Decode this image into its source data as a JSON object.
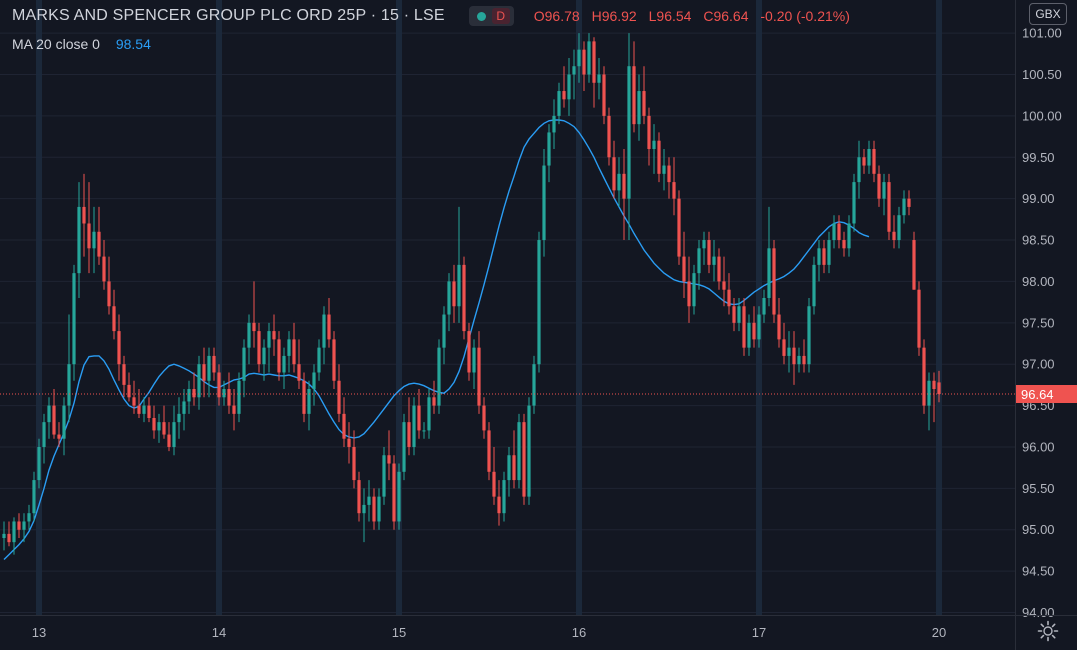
{
  "header": {
    "symbol": "MARKS AND SPENCER GROUP PLC ORD 25P · 15 · LSE",
    "status_badge": "D",
    "ohlc": {
      "open": "O96.78",
      "high": "H96.92",
      "low": "L96.54",
      "close": "C96.64",
      "change": "-0.20 (-0.21%)"
    }
  },
  "indicator": {
    "label": "MA 20 close 0",
    "value": "98.54"
  },
  "currency_button": "GBX",
  "icons": {
    "settings": "gear-icon",
    "status": "status-dot-icon"
  },
  "colors": {
    "background": "#131722",
    "up": "#26a69a",
    "down": "#ef5350",
    "ma": "#2a9df4",
    "grid": "#1f2433",
    "axis_text": "#b2b5be"
  },
  "chart_data": {
    "type": "candlestick",
    "interval": "15",
    "x_ticks": [
      "13",
      "14",
      "15",
      "16",
      "17",
      "20"
    ],
    "y_ticks": [
      "94.00",
      "94.50",
      "95.00",
      "95.50",
      "96.00",
      "96.50",
      "97.00",
      "97.50",
      "98.00",
      "98.50",
      "99.00",
      "99.50",
      "100.00",
      "100.50",
      "101.00"
    ],
    "ylim": [
      93.97,
      101.4
    ],
    "last_price": "96.64",
    "grid": true,
    "candles": [
      [
        94.9,
        95.1,
        94.75,
        94.95
      ],
      [
        94.95,
        95.1,
        94.8,
        94.85
      ],
      [
        94.85,
        95.15,
        94.7,
        95.1
      ],
      [
        95.1,
        95.2,
        94.9,
        95.0
      ],
      [
        95.0,
        95.2,
        94.85,
        95.1
      ],
      [
        95.1,
        95.3,
        95.0,
        95.2
      ],
      [
        95.2,
        95.7,
        95.1,
        95.6
      ],
      [
        95.6,
        96.1,
        95.5,
        96.0
      ],
      [
        96.0,
        96.4,
        95.8,
        96.3
      ],
      [
        96.3,
        96.6,
        96.1,
        96.5
      ],
      [
        96.5,
        96.7,
        96.1,
        96.15
      ],
      [
        96.15,
        96.3,
        96.0,
        96.1
      ],
      [
        96.1,
        96.6,
        95.9,
        96.5
      ],
      [
        96.5,
        97.6,
        96.3,
        97.0
      ],
      [
        97.0,
        98.2,
        96.8,
        98.1
      ],
      [
        98.1,
        99.2,
        97.8,
        98.9
      ],
      [
        98.9,
        99.3,
        98.3,
        98.7
      ],
      [
        98.7,
        99.2,
        98.1,
        98.4
      ],
      [
        98.4,
        98.9,
        98.1,
        98.6
      ],
      [
        98.6,
        98.9,
        98.2,
        98.3
      ],
      [
        98.3,
        98.5,
        97.9,
        98.0
      ],
      [
        98.0,
        98.3,
        97.6,
        97.7
      ],
      [
        97.7,
        97.9,
        97.3,
        97.4
      ],
      [
        97.4,
        97.6,
        96.8,
        97.0
      ],
      [
        97.0,
        97.1,
        96.6,
        96.75
      ],
      [
        96.75,
        96.9,
        96.55,
        96.6
      ],
      [
        96.6,
        96.8,
        96.4,
        96.5
      ],
      [
        96.5,
        96.7,
        96.35,
        96.4
      ],
      [
        96.4,
        96.6,
        96.3,
        96.5
      ],
      [
        96.5,
        96.6,
        96.3,
        96.35
      ],
      [
        96.35,
        96.5,
        96.1,
        96.2
      ],
      [
        96.2,
        96.4,
        96.05,
        96.3
      ],
      [
        96.3,
        96.5,
        96.1,
        96.15
      ],
      [
        96.15,
        96.3,
        95.95,
        96.0
      ],
      [
        96.0,
        96.5,
        95.9,
        96.3
      ],
      [
        96.3,
        96.6,
        96.1,
        96.4
      ],
      [
        96.4,
        96.7,
        96.2,
        96.55
      ],
      [
        96.55,
        96.8,
        96.4,
        96.7
      ],
      [
        96.7,
        96.9,
        96.5,
        96.6
      ],
      [
        96.6,
        97.1,
        96.45,
        97.0
      ],
      [
        97.0,
        97.2,
        96.6,
        96.8
      ],
      [
        96.8,
        97.2,
        96.6,
        97.1
      ],
      [
        97.1,
        97.2,
        96.8,
        96.9
      ],
      [
        96.9,
        97.0,
        96.5,
        96.6
      ],
      [
        96.6,
        96.8,
        96.5,
        96.7
      ],
      [
        96.7,
        96.9,
        96.4,
        96.5
      ],
      [
        96.5,
        96.7,
        96.2,
        96.4
      ],
      [
        96.4,
        96.9,
        96.3,
        96.8
      ],
      [
        96.8,
        97.3,
        96.6,
        97.2
      ],
      [
        97.2,
        97.6,
        97.0,
        97.5
      ],
      [
        97.5,
        98.0,
        97.2,
        97.4
      ],
      [
        97.4,
        97.5,
        96.9,
        97.0
      ],
      [
        97.0,
        97.3,
        96.8,
        97.2
      ],
      [
        97.2,
        97.5,
        96.9,
        97.4
      ],
      [
        97.4,
        97.6,
        97.1,
        97.3
      ],
      [
        97.3,
        97.4,
        96.8,
        96.9
      ],
      [
        96.9,
        97.2,
        96.7,
        97.1
      ],
      [
        97.1,
        97.4,
        96.9,
        97.3
      ],
      [
        97.3,
        97.5,
        96.9,
        97.0
      ],
      [
        97.0,
        97.3,
        96.7,
        96.8
      ],
      [
        96.8,
        96.9,
        96.3,
        96.4
      ],
      [
        96.4,
        96.8,
        96.2,
        96.7
      ],
      [
        96.7,
        97.0,
        96.5,
        96.9
      ],
      [
        96.9,
        97.3,
        96.8,
        97.2
      ],
      [
        97.2,
        97.7,
        97.0,
        97.6
      ],
      [
        97.6,
        97.8,
        97.2,
        97.3
      ],
      [
        97.3,
        97.4,
        96.7,
        96.8
      ],
      [
        96.8,
        97.0,
        96.3,
        96.4
      ],
      [
        96.4,
        96.6,
        96.0,
        96.1
      ],
      [
        96.1,
        96.3,
        95.8,
        96.0
      ],
      [
        96.0,
        96.2,
        95.5,
        95.6
      ],
      [
        95.6,
        95.7,
        95.1,
        95.2
      ],
      [
        95.2,
        95.5,
        94.85,
        95.3
      ],
      [
        95.3,
        95.6,
        95.1,
        95.4
      ],
      [
        95.4,
        95.5,
        95.0,
        95.1
      ],
      [
        95.1,
        95.5,
        95.0,
        95.4
      ],
      [
        95.4,
        96.0,
        95.3,
        95.9
      ],
      [
        95.9,
        96.2,
        95.6,
        95.8
      ],
      [
        95.8,
        95.9,
        95.0,
        95.1
      ],
      [
        95.1,
        95.8,
        95.0,
        95.7
      ],
      [
        95.7,
        96.4,
        95.6,
        96.3
      ],
      [
        96.3,
        96.6,
        95.9,
        96.0
      ],
      [
        96.0,
        96.6,
        95.9,
        96.5
      ],
      [
        96.5,
        96.7,
        96.1,
        96.2
      ],
      [
        96.2,
        96.3,
        96.1,
        96.2
      ],
      [
        96.2,
        96.7,
        96.1,
        96.6
      ],
      [
        96.6,
        96.8,
        96.4,
        96.5
      ],
      [
        96.5,
        97.3,
        96.4,
        97.2
      ],
      [
        97.2,
        97.7,
        97.0,
        97.6
      ],
      [
        97.6,
        98.1,
        97.4,
        98.0
      ],
      [
        98.0,
        98.2,
        97.5,
        97.7
      ],
      [
        97.7,
        98.9,
        97.5,
        98.2
      ],
      [
        98.2,
        98.3,
        97.3,
        97.4
      ],
      [
        97.4,
        97.5,
        96.8,
        96.9
      ],
      [
        96.9,
        97.3,
        96.7,
        97.2
      ],
      [
        97.2,
        97.4,
        96.4,
        96.5
      ],
      [
        96.5,
        96.6,
        96.1,
        96.2
      ],
      [
        96.2,
        96.3,
        95.6,
        95.7
      ],
      [
        95.7,
        96.0,
        95.3,
        95.4
      ],
      [
        95.4,
        95.6,
        95.05,
        95.2
      ],
      [
        95.2,
        95.7,
        95.1,
        95.6
      ],
      [
        95.6,
        96.0,
        95.4,
        95.9
      ],
      [
        95.9,
        96.2,
        95.5,
        95.6
      ],
      [
        95.6,
        96.4,
        95.5,
        96.3
      ],
      [
        96.3,
        96.4,
        95.3,
        95.4
      ],
      [
        95.4,
        96.6,
        95.3,
        96.5
      ],
      [
        96.5,
        97.1,
        96.4,
        97.0
      ],
      [
        97.0,
        98.6,
        96.9,
        98.5
      ],
      [
        98.5,
        99.6,
        98.3,
        99.4
      ],
      [
        99.4,
        99.9,
        99.2,
        99.8
      ],
      [
        99.8,
        100.2,
        99.6,
        100.0
      ],
      [
        100.0,
        100.4,
        99.9,
        100.3
      ],
      [
        100.3,
        100.6,
        100.1,
        100.2
      ],
      [
        100.2,
        100.7,
        100.0,
        100.5
      ],
      [
        100.5,
        100.8,
        100.2,
        100.6
      ],
      [
        100.6,
        101.0,
        100.4,
        100.8
      ],
      [
        100.8,
        100.9,
        100.3,
        100.5
      ],
      [
        100.5,
        101.0,
        100.4,
        100.9
      ],
      [
        100.9,
        100.95,
        100.1,
        100.4
      ],
      [
        100.4,
        100.7,
        100.2,
        100.5
      ],
      [
        100.5,
        100.6,
        99.9,
        100.0
      ],
      [
        100.0,
        100.1,
        99.4,
        99.5
      ],
      [
        99.5,
        99.7,
        99.0,
        99.1
      ],
      [
        99.1,
        99.5,
        98.9,
        99.3
      ],
      [
        99.3,
        99.6,
        98.5,
        99.0
      ],
      [
        99.0,
        101.0,
        98.5,
        100.6
      ],
      [
        100.6,
        100.9,
        99.8,
        99.9
      ],
      [
        99.9,
        100.5,
        99.7,
        100.3
      ],
      [
        100.3,
        100.6,
        99.9,
        100.0
      ],
      [
        100.0,
        100.1,
        99.4,
        99.6
      ],
      [
        99.6,
        99.9,
        99.3,
        99.7
      ],
      [
        99.7,
        99.8,
        99.2,
        99.3
      ],
      [
        99.3,
        99.6,
        99.1,
        99.4
      ],
      [
        99.4,
        99.5,
        99.0,
        99.2
      ],
      [
        99.2,
        99.5,
        98.8,
        99.0
      ],
      [
        99.0,
        99.1,
        98.2,
        98.3
      ],
      [
        98.3,
        98.6,
        97.8,
        98.0
      ],
      [
        98.0,
        98.3,
        97.5,
        97.7
      ],
      [
        97.7,
        98.2,
        97.6,
        98.1
      ],
      [
        98.1,
        98.5,
        97.9,
        98.4
      ],
      [
        98.4,
        98.6,
        98.2,
        98.5
      ],
      [
        98.5,
        98.6,
        98.1,
        98.2
      ],
      [
        98.2,
        98.5,
        98.0,
        98.3
      ],
      [
        98.3,
        98.4,
        97.9,
        98.0
      ],
      [
        98.0,
        98.3,
        97.7,
        97.9
      ],
      [
        97.9,
        98.1,
        97.6,
        97.7
      ],
      [
        97.7,
        97.8,
        97.4,
        97.5
      ],
      [
        97.5,
        97.8,
        97.4,
        97.7
      ],
      [
        97.7,
        97.8,
        97.1,
        97.2
      ],
      [
        97.2,
        97.6,
        97.1,
        97.5
      ],
      [
        97.5,
        97.7,
        97.2,
        97.3
      ],
      [
        97.3,
        97.7,
        97.2,
        97.6
      ],
      [
        97.6,
        97.9,
        97.5,
        97.8
      ],
      [
        97.8,
        98.9,
        97.7,
        98.4
      ],
      [
        98.4,
        98.5,
        97.5,
        97.6
      ],
      [
        97.6,
        97.8,
        97.2,
        97.3
      ],
      [
        97.3,
        97.5,
        97.0,
        97.1
      ],
      [
        97.1,
        97.4,
        96.9,
        97.2
      ],
      [
        97.2,
        97.4,
        96.75,
        97.0
      ],
      [
        97.0,
        97.2,
        96.9,
        97.1
      ],
      [
        97.1,
        97.3,
        96.9,
        97.0
      ],
      [
        97.0,
        97.8,
        96.9,
        97.7
      ],
      [
        97.7,
        98.3,
        97.6,
        98.2
      ],
      [
        98.2,
        98.5,
        98.0,
        98.4
      ],
      [
        98.4,
        98.5,
        98.1,
        98.2
      ],
      [
        98.2,
        98.6,
        98.1,
        98.5
      ],
      [
        98.5,
        98.8,
        98.4,
        98.7
      ],
      [
        98.7,
        98.8,
        98.4,
        98.5
      ],
      [
        98.5,
        98.6,
        98.3,
        98.4
      ],
      [
        98.4,
        98.8,
        98.3,
        98.7
      ],
      [
        98.7,
        99.3,
        98.6,
        99.2
      ],
      [
        99.2,
        99.7,
        99.0,
        99.5
      ],
      [
        99.5,
        99.6,
        99.3,
        99.4
      ],
      [
        99.4,
        99.7,
        99.3,
        99.6
      ],
      [
        99.6,
        99.7,
        99.2,
        99.3
      ],
      [
        99.3,
        99.4,
        98.9,
        99.0
      ],
      [
        99.0,
        99.3,
        98.8,
        99.2
      ],
      [
        99.2,
        99.3,
        98.5,
        98.6
      ],
      [
        98.6,
        98.8,
        98.4,
        98.5
      ],
      [
        98.5,
        98.9,
        98.4,
        98.8
      ],
      [
        98.8,
        99.1,
        98.7,
        99.0
      ],
      [
        99.0,
        99.1,
        98.8,
        98.9
      ],
      [
        98.5,
        98.6,
        97.9,
        97.9
      ],
      [
        97.9,
        98.0,
        97.1,
        97.2
      ],
      [
        97.2,
        97.3,
        96.4,
        96.5
      ],
      [
        96.5,
        96.9,
        96.2,
        96.8
      ],
      [
        96.8,
        96.9,
        96.3,
        96.7
      ],
      [
        96.78,
        96.92,
        96.54,
        96.64
      ]
    ],
    "ma_values": [
      94.64,
      94.7,
      94.76,
      94.82,
      94.89,
      94.98,
      95.11,
      95.3,
      95.5,
      95.72,
      95.89,
      96.03,
      96.17,
      96.33,
      96.53,
      96.79,
      96.99,
      97.09,
      97.1,
      97.1,
      97.04,
      96.94,
      96.81,
      96.69,
      96.58,
      96.5,
      96.47,
      96.49,
      96.58,
      96.66,
      96.76,
      96.85,
      96.92,
      96.98,
      97.0,
      96.98,
      96.95,
      96.92,
      96.88,
      96.84,
      96.79,
      96.75,
      96.72,
      96.72,
      96.75,
      96.78,
      96.81,
      96.82,
      96.84,
      96.88,
      96.89,
      96.88,
      96.87,
      96.88,
      96.87,
      96.86,
      96.86,
      96.87,
      96.85,
      96.83,
      96.8,
      96.76,
      96.7,
      96.62,
      96.51,
      96.4,
      96.3,
      96.21,
      96.15,
      96.12,
      96.11,
      96.12,
      96.16,
      96.23,
      96.3,
      96.38,
      96.46,
      96.54,
      96.62,
      96.68,
      96.73,
      96.76,
      96.77,
      96.76,
      96.74,
      96.71,
      96.68,
      96.66,
      96.65,
      96.7,
      96.78,
      96.91,
      97.09,
      97.31,
      97.53,
      97.74,
      97.96,
      98.19,
      98.43,
      98.67,
      98.89,
      99.09,
      99.27,
      99.46,
      99.62,
      99.72,
      99.79,
      99.86,
      99.91,
      99.94,
      99.95,
      99.95,
      99.94,
      99.91,
      99.87,
      99.8,
      99.71,
      99.61,
      99.5,
      99.37,
      99.25,
      99.13,
      99.01,
      98.9,
      98.79,
      98.69,
      98.58,
      98.48,
      98.38,
      98.3,
      98.22,
      98.16,
      98.1,
      98.06,
      98.02,
      98.0,
      97.99,
      97.98,
      97.97,
      97.96,
      97.94,
      97.91,
      97.86,
      97.81,
      97.76,
      97.73,
      97.72,
      97.73,
      97.77,
      97.82,
      97.87,
      97.91,
      97.95,
      97.98,
      98.01,
      98.03,
      98.06,
      98.1,
      98.15,
      98.22,
      98.3,
      98.38,
      98.46,
      98.54,
      98.6,
      98.66,
      98.7,
      98.72,
      98.71,
      98.68,
      98.64,
      98.59,
      98.56,
      98.54
    ]
  }
}
